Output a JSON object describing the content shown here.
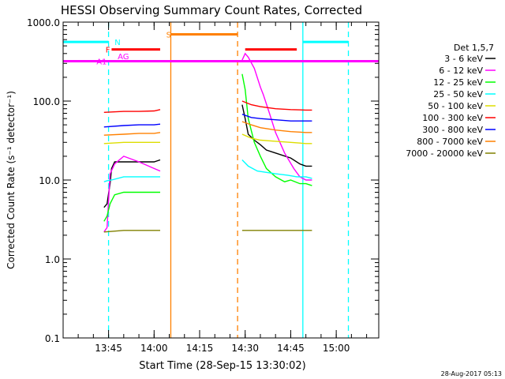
{
  "chart_data": {
    "type": "line",
    "title": "HESSI Observing Summary Count Rates, Corrected",
    "xlabel": "Start Time (28-Sep-15 13:30:02)",
    "ylabel": "Corrected Count Rate (s⁻¹ detector⁻¹)",
    "footer": "28-Aug-2017 05:13",
    "y_scale": "log",
    "ylim": [
      0.1,
      1000
    ],
    "xlim": [
      "13:30:02",
      "15:14"
    ],
    "y_ticks": [
      "0.1",
      "1.0",
      "10.0",
      "100.0",
      "1000.0"
    ],
    "x_ticks": [
      "13:45",
      "14:00",
      "14:15",
      "14:30",
      "14:45",
      "15:00"
    ],
    "grid": false,
    "legend_position": "right",
    "legend_title": "Det 1,5,7",
    "series": [
      {
        "name": "3 - 6 keV",
        "color": "#000000",
        "segments": [
          [
            [
              "13:43:30",
              4.5
            ],
            [
              "13:44:30",
              5
            ],
            [
              "13:45:30",
              9
            ],
            [
              "13:46",
              14
            ],
            [
              "13:47",
              17
            ],
            [
              "13:50",
              17
            ],
            [
              "13:55",
              17
            ],
            [
              "14:00",
              17
            ],
            [
              "14:02",
              18
            ]
          ],
          [
            [
              "14:29",
              90
            ],
            [
              "14:30",
              60
            ],
            [
              "14:31",
              38
            ],
            [
              "14:33",
              32
            ],
            [
              "14:35",
              28
            ],
            [
              "14:37",
              24
            ],
            [
              "14:40",
              22
            ],
            [
              "14:45",
              19
            ],
            [
              "14:48",
              16
            ],
            [
              "14:50",
              15
            ],
            [
              "14:52",
              15
            ]
          ]
        ]
      },
      {
        "name": "6 - 12 keV",
        "color": "#ff00ff",
        "segments": [
          [
            [
              "13:43:30",
              2.2
            ],
            [
              "13:44:30",
              2.5
            ],
            [
              "13:45:30",
              12
            ],
            [
              "13:47",
              16
            ],
            [
              "13:50",
              20
            ],
            [
              "13:55",
              17
            ],
            [
              "14:00",
              14
            ],
            [
              "14:02",
              13
            ]
          ],
          [
            [
              "14:29",
              330
            ],
            [
              "14:30",
              400
            ],
            [
              "14:31",
              360
            ],
            [
              "14:33",
              260
            ],
            [
              "14:35",
              150
            ],
            [
              "14:36",
              120
            ],
            [
              "14:38",
              70
            ],
            [
              "14:40",
              40
            ],
            [
              "14:43",
              22
            ],
            [
              "14:46",
              14
            ],
            [
              "14:48",
              11
            ],
            [
              "14:50",
              10
            ],
            [
              "14:52",
              10
            ]
          ]
        ]
      },
      {
        "name": "12 - 25 keV",
        "color": "#00ff00",
        "segments": [
          [
            [
              "13:43:30",
              3
            ],
            [
              "13:44:30",
              3.5
            ],
            [
              "13:45:30",
              5
            ],
            [
              "13:47",
              6.5
            ],
            [
              "13:50",
              7
            ],
            [
              "13:55",
              7
            ],
            [
              "14:00",
              7
            ],
            [
              "14:02",
              7
            ]
          ],
          [
            [
              "14:29",
              220
            ],
            [
              "14:30",
              140
            ],
            [
              "14:31",
              60
            ],
            [
              "14:33",
              30
            ],
            [
              "14:35",
              20
            ],
            [
              "14:37",
              14
            ],
            [
              "14:40",
              11
            ],
            [
              "14:43",
              9.5
            ],
            [
              "14:45",
              10
            ],
            [
              "14:48",
              9
            ],
            [
              "14:50",
              9
            ],
            [
              "14:52",
              8.5
            ]
          ]
        ]
      },
      {
        "name": "25 - 50 keV",
        "color": "#00ffff",
        "segments": [
          [
            [
              "13:43:30",
              9.5
            ],
            [
              "13:44:30",
              9.8
            ],
            [
              "13:46",
              10
            ],
            [
              "13:50",
              11
            ],
            [
              "13:55",
              11
            ],
            [
              "14:00",
              11
            ],
            [
              "14:02",
              11
            ]
          ],
          [
            [
              "14:29",
              18
            ],
            [
              "14:31",
              15
            ],
            [
              "14:34",
              13
            ],
            [
              "14:37",
              12.5
            ],
            [
              "14:40",
              12
            ],
            [
              "14:44",
              11.5
            ],
            [
              "14:47",
              11
            ],
            [
              "14:50",
              11
            ],
            [
              "14:52",
              10.5
            ]
          ]
        ]
      },
      {
        "name": "50 - 100 keV",
        "color": "#dddd00",
        "segments": [
          [
            [
              "13:43:30",
              29
            ],
            [
              "13:50",
              30
            ],
            [
              "13:55",
              30
            ],
            [
              "14:00",
              30
            ],
            [
              "14:02",
              30
            ]
          ],
          [
            [
              "14:29",
              38
            ],
            [
              "14:32",
              34
            ],
            [
              "14:35",
              32
            ],
            [
              "14:40",
              31
            ],
            [
              "14:45",
              30
            ],
            [
              "14:50",
              29
            ],
            [
              "14:52",
              29
            ]
          ]
        ]
      },
      {
        "name": "100 - 300 keV",
        "color": "#ff0000",
        "segments": [
          [
            [
              "13:43:30",
              72
            ],
            [
              "13:50",
              74
            ],
            [
              "13:55",
              74
            ],
            [
              "14:00",
              75
            ],
            [
              "14:02",
              78
            ]
          ],
          [
            [
              "14:29",
              100
            ],
            [
              "14:32",
              90
            ],
            [
              "14:35",
              85
            ],
            [
              "14:40",
              80
            ],
            [
              "14:45",
              78
            ],
            [
              "14:50",
              77
            ],
            [
              "14:52",
              77
            ]
          ]
        ]
      },
      {
        "name": "300 - 800 keV",
        "color": "#0000ff",
        "segments": [
          [
            [
              "13:43:30",
              47
            ],
            [
              "13:50",
              49
            ],
            [
              "13:55",
              50
            ],
            [
              "14:00",
              50
            ],
            [
              "14:02",
              51
            ]
          ],
          [
            [
              "14:29",
              68
            ],
            [
              "14:32",
              62
            ],
            [
              "14:35",
              60
            ],
            [
              "14:40",
              58
            ],
            [
              "14:45",
              56
            ],
            [
              "14:50",
              56
            ],
            [
              "14:52",
              56
            ]
          ]
        ]
      },
      {
        "name": "800 - 7000 keV",
        "color": "#ff8000",
        "segments": [
          [
            [
              "13:43:30",
              37
            ],
            [
              "13:50",
              38
            ],
            [
              "13:55",
              39
            ],
            [
              "14:00",
              39
            ],
            [
              "14:02",
              40
            ]
          ],
          [
            [
              "14:29",
              55
            ],
            [
              "14:32",
              50
            ],
            [
              "14:35",
              46
            ],
            [
              "14:40",
              43
            ],
            [
              "14:45",
              41
            ],
            [
              "14:50",
              40
            ],
            [
              "14:52",
              40
            ]
          ]
        ]
      },
      {
        "name": "7000 - 20000 keV",
        "color": "#808000",
        "segments": [
          [
            [
              "13:43:30",
              2.2
            ],
            [
              "13:50",
              2.3
            ],
            [
              "13:55",
              2.3
            ],
            [
              "14:00",
              2.3
            ],
            [
              "14:02",
              2.3
            ]
          ],
          [
            [
              "14:29",
              2.3
            ],
            [
              "14:35",
              2.3
            ],
            [
              "14:40",
              2.3
            ],
            [
              "14:45",
              2.3
            ],
            [
              "14:50",
              2.3
            ],
            [
              "14:52",
              2.3
            ]
          ]
        ]
      }
    ],
    "state_bars": [
      {
        "label": "N",
        "color": "#00ffff",
        "y": 560,
        "intervals": [
          [
            "13:30:02",
            "13:45:00"
          ],
          [
            "14:49:00",
            "15:04:00"
          ]
        ]
      },
      {
        "label": "S",
        "color": "#ff8000",
        "y": 700,
        "intervals": [
          [
            "14:05:30",
            "14:27:30"
          ]
        ]
      },
      {
        "label": "F",
        "color": "#ff0000",
        "y": 450,
        "intervals": [
          [
            "13:46:00",
            "14:02:00"
          ],
          [
            "14:30:00",
            "14:47:00"
          ]
        ]
      },
      {
        "label": "AG",
        "color": "#ff00ff",
        "y": 370,
        "intervals": []
      },
      {
        "label": "A1",
        "color": "#ff00ff",
        "y": 320,
        "intervals": [
          [
            "13:30:02",
            "15:14:00"
          ]
        ]
      }
    ],
    "vertical_markers": [
      {
        "time": "13:45:00",
        "color": "#00ffff",
        "style": "dashed"
      },
      {
        "time": "14:05:30",
        "color": "#ff8000",
        "style": "solid"
      },
      {
        "time": "14:27:30",
        "color": "#ff8000",
        "style": "dashed"
      },
      {
        "time": "14:49:00",
        "color": "#00ffff",
        "style": "solid"
      },
      {
        "time": "15:04:00",
        "color": "#00ffff",
        "style": "dashed"
      }
    ]
  }
}
